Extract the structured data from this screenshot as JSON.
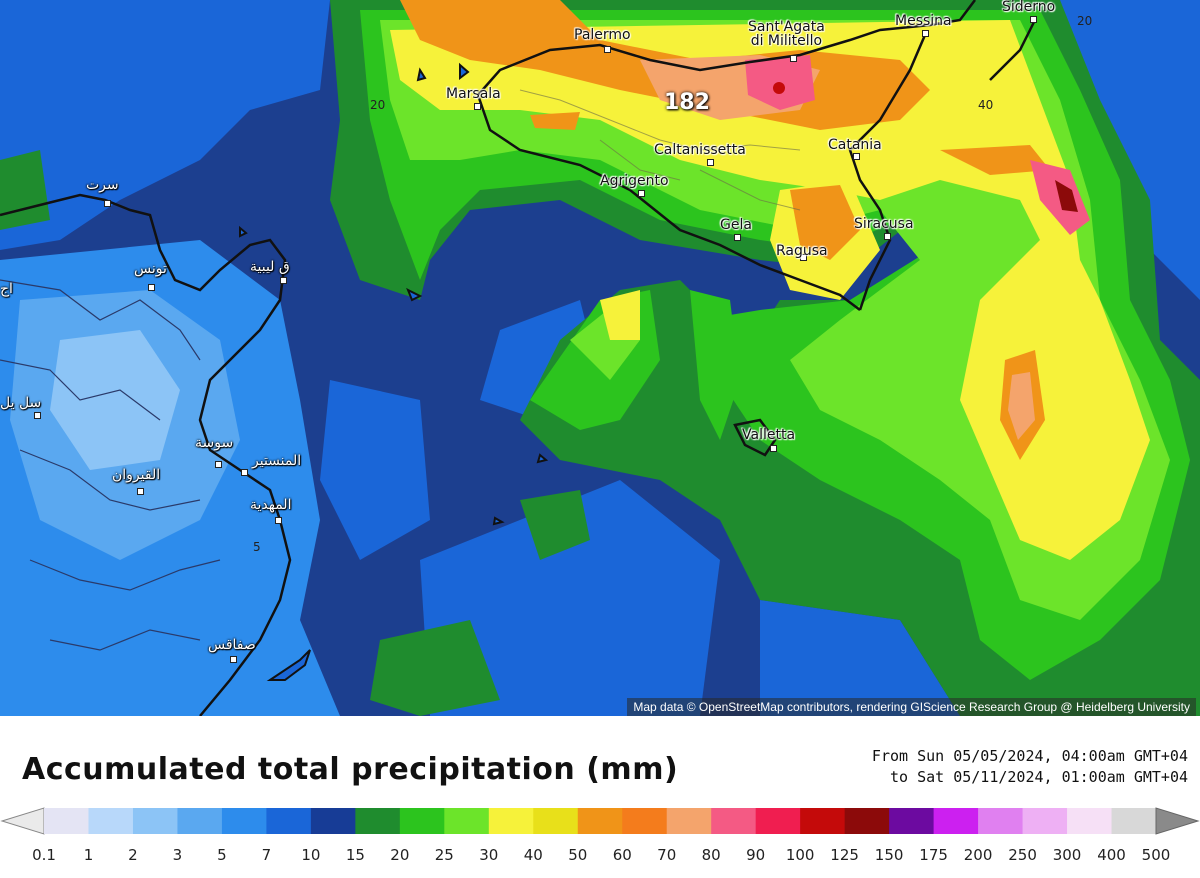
{
  "map": {
    "max_value": "182",
    "cities": [
      {
        "name": "Palermo",
        "key": "palermo"
      },
      {
        "name": "Sant'Agata\ndi Militello",
        "key": "santagata"
      },
      {
        "name": "Messina",
        "key": "messina"
      },
      {
        "name": "Siderno",
        "key": "siderno"
      },
      {
        "name": "Marsala",
        "key": "marsala"
      },
      {
        "name": "Caltanissetta",
        "key": "caltanissetta"
      },
      {
        "name": "Catania",
        "key": "catania"
      },
      {
        "name": "Agrigento",
        "key": "agrigento"
      },
      {
        "name": "Gela",
        "key": "gela"
      },
      {
        "name": "Siracusa",
        "key": "siracusa"
      },
      {
        "name": "Ragusa",
        "key": "ragusa"
      },
      {
        "name": "Valletta",
        "key": "valletta"
      },
      {
        "name": "سرت",
        "key": "sirte"
      },
      {
        "name": "تونس",
        "key": "tunis"
      },
      {
        "name": "ق ليبية",
        "key": "kelibia"
      },
      {
        "name": "سوسة",
        "key": "sousse"
      },
      {
        "name": "المنستير",
        "key": "monastir"
      },
      {
        "name": "القيروان",
        "key": "kairouan"
      },
      {
        "name": "المهدية",
        "key": "mahdia"
      },
      {
        "name": "صفاقس",
        "key": "sfax"
      },
      {
        "name": "سل يل",
        "key": "siliana"
      },
      {
        "name": "اج",
        "key": "beja"
      }
    ],
    "contour_labels": [
      "20",
      "40",
      "20",
      "5"
    ],
    "attribution": "Map data © OpenStreetMap contributors, rendering GIScience Research Group @ Heidelberg University"
  },
  "legend": {
    "title": "Accumulated total precipitation (mm)",
    "time_from": "From Sun 05/05/2024, 04:00am GMT+04",
    "time_to": "to Sat 05/11/2024, 01:00am GMT+04",
    "ticks": [
      "0.1",
      "1",
      "2",
      "3",
      "5",
      "7",
      "10",
      "15",
      "20",
      "25",
      "30",
      "40",
      "50",
      "60",
      "70",
      "80",
      "90",
      "100",
      "125",
      "150",
      "175",
      "200",
      "250",
      "300",
      "400",
      "500"
    ],
    "colors": [
      "#e4e4f4",
      "#b8d8fa",
      "#8cc4f6",
      "#5aa8f0",
      "#2d8cec",
      "#1a66d8",
      "#173c96",
      "#1f8c2e",
      "#2cc41e",
      "#6ce42a",
      "#f6f23a",
      "#e8e01a",
      "#f09418",
      "#f47c1c",
      "#f4a46c",
      "#f45a84",
      "#f01e50",
      "#c40a0a",
      "#8c0a0a",
      "#6c0aa0",
      "#cc20f0",
      "#e080f0",
      "#eeb0f4",
      "#f6e0f6",
      "#d8d8d8"
    ]
  }
}
